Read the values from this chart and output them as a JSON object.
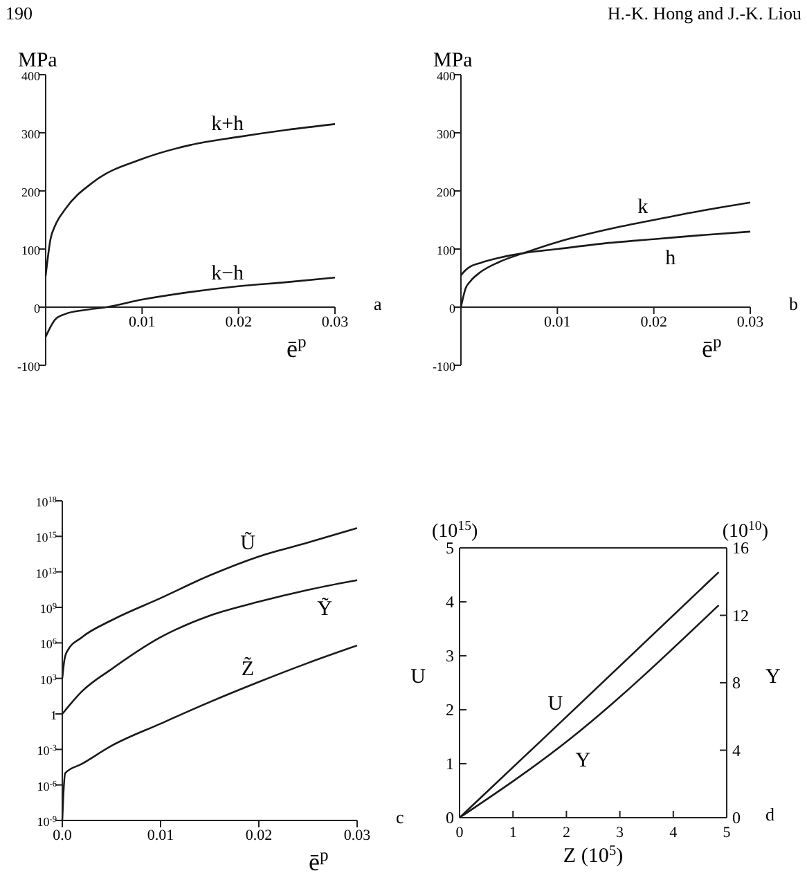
{
  "chart_data": [
    {
      "type": "other",
      "annotations": [
        "190",
        "H.-K. Hong and J.-K. Liou"
      ]
    },
    {
      "type": "line",
      "ylabel": "MPa",
      "xlabel": "ē$^{p}$",
      "annotations": [
        "a"
      ],
      "xlim": [
        0,
        0.03
      ],
      "xticks": [
        0.01,
        0.02,
        0.03
      ],
      "ylim": [
        -100,
        400
      ],
      "yticks": [
        -100,
        0,
        100,
        200,
        300,
        400
      ],
      "series": [
        {
          "name": "k+h",
          "color": "#1a1a1a",
          "x": [
            0,
            0.0005,
            0.001,
            0.002,
            0.005,
            0.01,
            0.015,
            0.02,
            0.025,
            0.03
          ],
          "values": [
            54,
            117,
            141,
            168,
            216,
            255,
            279,
            293,
            305,
            315
          ]
        },
        {
          "name": "k−h",
          "color": "#1a1a1a",
          "x": [
            0,
            0.001,
            0.002,
            0.004,
            0.0063,
            0.01,
            0.015,
            0.02,
            0.025,
            0.03
          ],
          "values": [
            -51,
            -21,
            -12,
            -5,
            0,
            13,
            26,
            36,
            43,
            51
          ]
        }
      ]
    },
    {
      "type": "line",
      "ylabel": "MPa",
      "xlabel": "ē$^{p}$",
      "annotations": [
        "b"
      ],
      "xlim": [
        0,
        0.03
      ],
      "xticks": [
        0.01,
        0.02,
        0.03
      ],
      "ylim": [
        -100,
        400
      ],
      "yticks": [
        -100,
        0,
        100,
        200,
        300,
        400
      ],
      "series": [
        {
          "name": "k",
          "color": "#1a1a1a",
          "x": [
            0,
            0.0005,
            0.001,
            0.002,
            0.004,
            0.0065,
            0.01,
            0.015,
            0.02,
            0.025,
            0.03
          ],
          "values": [
            0,
            33,
            45,
            60,
            78,
            93,
            112,
            133,
            150,
            166,
            180
          ]
        },
        {
          "name": "h",
          "color": "#1a1a1a",
          "x": [
            0,
            0.0005,
            0.001,
            0.002,
            0.004,
            0.0065,
            0.01,
            0.015,
            0.02,
            0.025,
            0.03
          ],
          "values": [
            55,
            64,
            70,
            76,
            85,
            93,
            100,
            110,
            117,
            124,
            130
          ]
        }
      ]
    },
    {
      "type": "line",
      "log": true,
      "xlabel": "ē$^{p}$",
      "annotations": [
        "c"
      ],
      "xlim": [
        0,
        0.03
      ],
      "xticks": [
        {
          "value": 0,
          "label": "0.0"
        },
        0.01,
        0.02,
        0.03
      ],
      "ylim": [
        1e-09,
        1e+18
      ],
      "yticks": [
        {
          "value": 1e-09,
          "label": "10$^{-9}$"
        },
        {
          "value": 1e-06,
          "label": "10$^{-6}$"
        },
        {
          "value": 0.001,
          "label": "10$^{-3}$"
        },
        1,
        {
          "value": 1000.0,
          "label": "10$^{3}$"
        },
        {
          "value": 1000000.0,
          "label": "10$^{6}$"
        },
        {
          "value": 1000000000.0,
          "label": "10$^{9}$"
        },
        {
          "value": 1000000000000.0,
          "label": "10$^{12}$"
        },
        {
          "value": 1000000000000000.0,
          "label": "10$^{15}$"
        },
        {
          "value": 1e+18,
          "label": "10$^{18}$"
        }
      ],
      "series": [
        {
          "name": "Ũ",
          "color": "#1a1a1a",
          "x": [
            0,
            0.0002,
            0.0005,
            0.002,
            0.005,
            0.01,
            0.015,
            0.02,
            0.025,
            0.03
          ],
          "values": [
            1000.0,
            30000.0,
            200000.0,
            3000000.0,
            80000000.0,
            6000000000.0,
            500000000000.0,
            20000000000000.0,
            300000000000000.0,
            5000000000000000.0
          ]
        },
        {
          "name": "Ỹ",
          "color": "#1a1a1a",
          "x": [
            0,
            0.002,
            0.005,
            0.01,
            0.015,
            0.02,
            0.025,
            0.03
          ],
          "values": [
            1,
            80,
            6000.0,
            3000000.0,
            200000000.0,
            3000000000.0,
            30000000000.0,
            200000000000.0
          ]
        },
        {
          "name": "Z̃",
          "color": "#1a1a1a",
          "x": [
            0,
            0.0001,
            0.0003,
            0.002,
            0.005,
            0.01,
            0.015,
            0.02,
            0.025,
            0.03
          ],
          "values": [
            1e-09,
            1e-07,
            1e-05,
            6e-05,
            0.002,
            0.15,
            10,
            500,
            20000.0,
            600000.0
          ]
        }
      ]
    },
    {
      "type": "line",
      "xlabel": "Z (10$^{5}$)",
      "ylabel": "U",
      "y2label": "Y",
      "annotations": [
        "(10$^{15}$)",
        "(10$^{10}$)",
        "d"
      ],
      "xlim": [
        0,
        5
      ],
      "xticks": [
        0,
        1,
        2,
        3,
        4,
        5
      ],
      "ylim": [
        0,
        5
      ],
      "yticks": [
        0,
        1,
        2,
        3,
        4,
        5
      ],
      "y2lim": [
        0,
        16
      ],
      "y2ticks": [
        0,
        4,
        8,
        12,
        16
      ],
      "series": [
        {
          "name": "U",
          "color": "#1a1a1a",
          "x": [
            0,
            2,
            4.85
          ],
          "values": [
            0,
            1.87,
            4.55
          ]
        },
        {
          "name": "Y",
          "color": "#1a1a1a",
          "axis": "y2",
          "x": [
            0,
            2,
            4.85
          ],
          "values": [
            0,
            4.5,
            12.6
          ]
        }
      ]
    }
  ]
}
